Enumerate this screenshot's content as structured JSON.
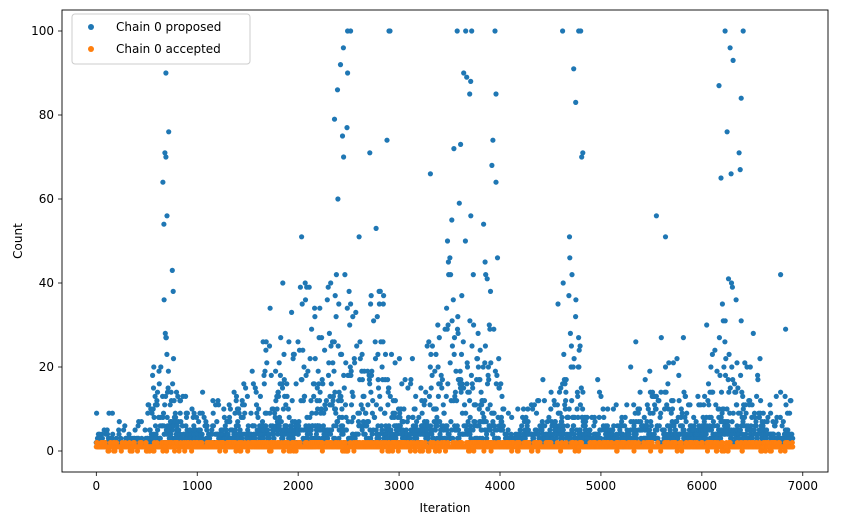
{
  "chart_data": {
    "type": "scatter",
    "xlabel": "Iteration",
    "ylabel": "Count",
    "xlim": [
      -340,
      7250
    ],
    "ylim": [
      -5,
      105
    ],
    "x_ticks": [
      0,
      1000,
      2000,
      3000,
      4000,
      5000,
      6000,
      7000
    ],
    "y_ticks": [
      0,
      20,
      40,
      60,
      80,
      100
    ],
    "legend_position": "upper-left",
    "grid": false,
    "n_iterations": 6900,
    "series": [
      {
        "name": "Chain 0 proposed",
        "color": "#1f77b4",
        "notable_points": [
          [
            690,
            90
          ],
          [
            680,
            71
          ],
          [
            690,
            70
          ],
          [
            700,
            56
          ],
          [
            660,
            64
          ],
          [
            670,
            54
          ],
          [
            2360,
            79
          ],
          [
            2390,
            86
          ],
          [
            2420,
            92
          ],
          [
            2450,
            70
          ],
          [
            2490,
            100
          ],
          [
            2520,
            100
          ],
          [
            2490,
            90
          ],
          [
            2710,
            71
          ],
          [
            2900,
            100
          ],
          [
            2910,
            100
          ],
          [
            2880,
            74
          ],
          [
            3310,
            66
          ],
          [
            3610,
            73
          ],
          [
            3660,
            100
          ],
          [
            3640,
            90
          ],
          [
            3670,
            89
          ],
          [
            3720,
            100
          ],
          [
            3710,
            88
          ],
          [
            3700,
            85
          ],
          [
            3930,
            74
          ],
          [
            3950,
            100
          ],
          [
            3960,
            85
          ],
          [
            3920,
            68
          ],
          [
            4620,
            100
          ],
          [
            4730,
            91
          ],
          [
            4750,
            83
          ],
          [
            4780,
            100
          ],
          [
            4800,
            100
          ],
          [
            4820,
            71
          ],
          [
            4810,
            70
          ],
          [
            5550,
            56
          ],
          [
            5640,
            51
          ],
          [
            6170,
            87
          ],
          [
            6190,
            65
          ],
          [
            6230,
            100
          ],
          [
            6250,
            76
          ],
          [
            6280,
            96
          ],
          [
            6310,
            93
          ],
          [
            6290,
            66
          ],
          [
            6380,
            67
          ],
          [
            6390,
            84
          ],
          [
            6410,
            100
          ],
          [
            6780,
            42
          ],
          [
            6830,
            29
          ]
        ]
      },
      {
        "name": "Chain 0 accepted",
        "color": "#ff7f0e",
        "typical_values": [
          0,
          1,
          2
        ],
        "notable_points": [
          [
            2900,
            0
          ],
          [
            3700,
            0
          ],
          [
            4600,
            0
          ],
          [
            4780,
            0
          ],
          [
            6200,
            0
          ],
          [
            6400,
            0
          ]
        ]
      }
    ]
  }
}
